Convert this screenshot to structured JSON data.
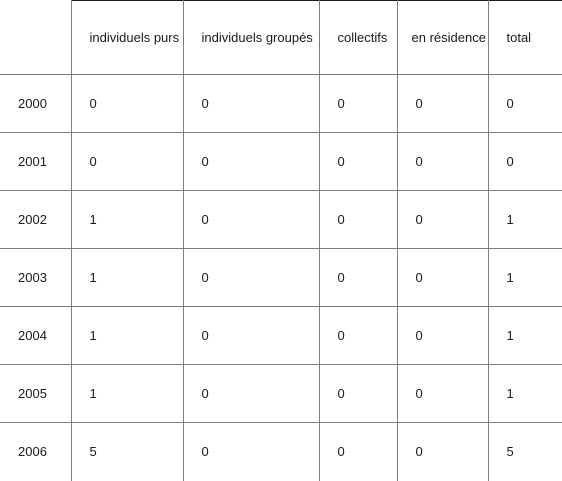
{
  "table": {
    "headers": [
      "",
      "individuels purs",
      "individuels groupés",
      "collectifs",
      "en résidence",
      "total"
    ],
    "rows": [
      [
        "2000",
        "0",
        "0",
        "0",
        "0",
        "0"
      ],
      [
        "2001",
        "0",
        "0",
        "0",
        "0",
        "0"
      ],
      [
        "2002",
        "1",
        "0",
        "0",
        "0",
        "1"
      ],
      [
        "2003",
        "1",
        "0",
        "0",
        "0",
        "1"
      ],
      [
        "2004",
        "1",
        "0",
        "0",
        "0",
        "1"
      ],
      [
        "2005",
        "1",
        "0",
        "0",
        "0",
        "1"
      ],
      [
        "2006",
        "5",
        "0",
        "0",
        "0",
        "5"
      ]
    ]
  }
}
